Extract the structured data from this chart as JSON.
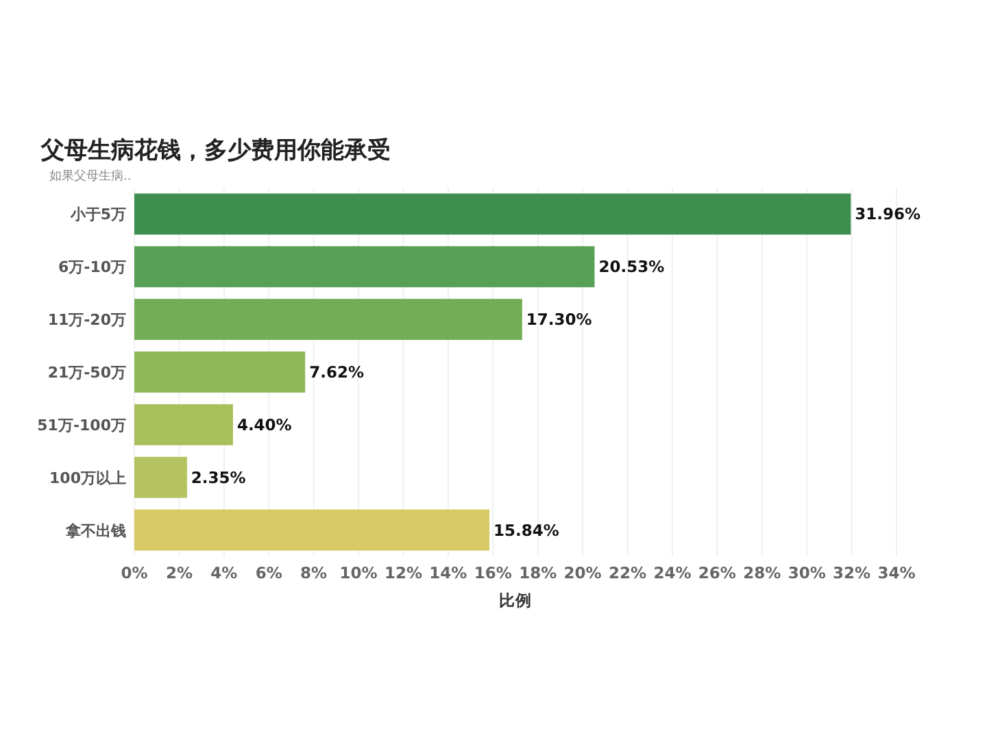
{
  "chart_data": {
    "type": "bar",
    "orientation": "horizontal",
    "title": "父母生病花钱，多少费用你能承受",
    "subtitle": "如果父母生病..",
    "xlabel": "比例",
    "categories": [
      "小于5万",
      "6万-10万",
      "11万-20万",
      "21万-50万",
      "51万-100万",
      "100万以上",
      "拿不出钱"
    ],
    "values": [
      31.96,
      20.53,
      17.3,
      7.62,
      4.4,
      2.35,
      15.84
    ],
    "value_labels": [
      "31.96%",
      "20.53%",
      "17.30%",
      "7.62%",
      "4.40%",
      "2.35%",
      "15.84%"
    ],
    "colors": [
      "#3e8e4f",
      "#58a055",
      "#74ad58",
      "#8fba5a",
      "#a8bf5c",
      "#b5c260",
      "#d6c966"
    ],
    "xlim": [
      0,
      34
    ],
    "xticks": [
      {
        "value": 0,
        "label": "0%"
      },
      {
        "value": 2,
        "label": "2%"
      },
      {
        "value": 4,
        "label": "4%"
      },
      {
        "value": 6,
        "label": "6%"
      },
      {
        "value": 8,
        "label": "8%"
      },
      {
        "value": 10,
        "label": "10%"
      },
      {
        "value": 12,
        "label": "12%"
      },
      {
        "value": 14,
        "label": "14%"
      },
      {
        "value": 16,
        "label": "16%"
      },
      {
        "value": 18,
        "label": "18%"
      },
      {
        "value": 20,
        "label": "20%"
      },
      {
        "value": 22,
        "label": "22%"
      },
      {
        "value": 24,
        "label": "24%"
      },
      {
        "value": 26,
        "label": "26%"
      },
      {
        "value": 28,
        "label": "28%"
      },
      {
        "value": 30,
        "label": "30%"
      },
      {
        "value": 32,
        "label": "32%"
      },
      {
        "value": 34,
        "label": "34%"
      }
    ],
    "grid": "x"
  }
}
